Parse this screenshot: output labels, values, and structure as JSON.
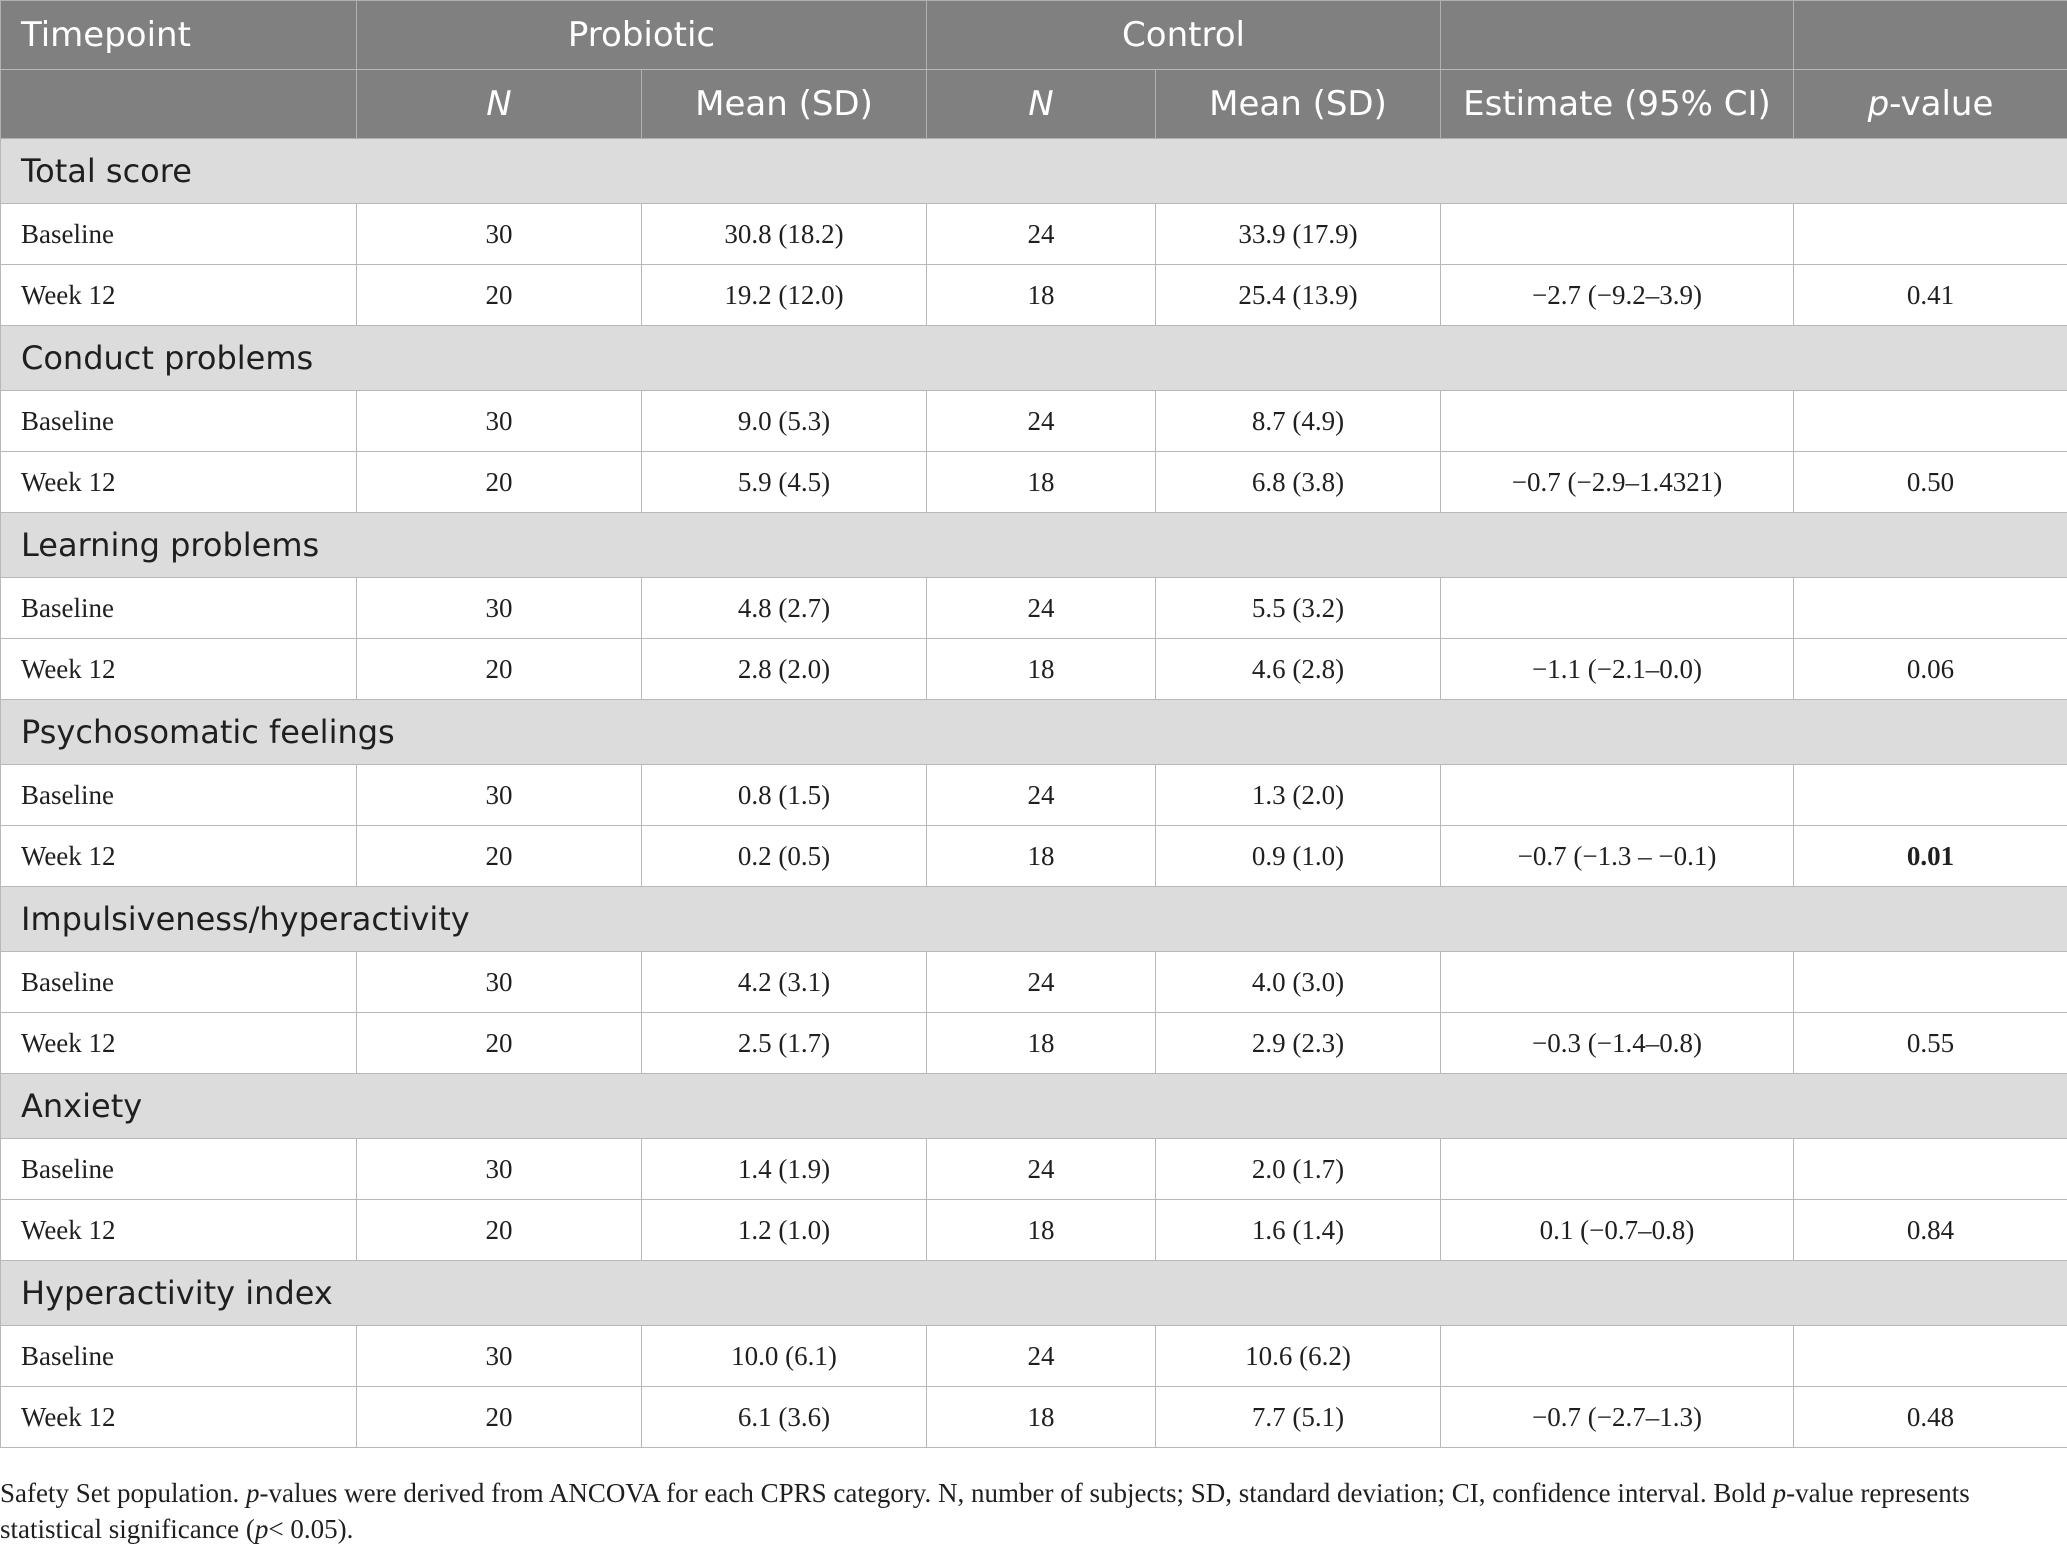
{
  "header": {
    "timepoint": "Timepoint",
    "probiotic": "Probiotic",
    "control": "Control",
    "n": "N",
    "mean_sd": "Mean (SD)",
    "estimate": "Estimate (95% CI)",
    "p_prefix": "p",
    "p_suffix": "-value"
  },
  "sections": [
    {
      "title": "Total score",
      "rows": [
        {
          "timepoint": "Baseline",
          "p_n": "30",
          "p_mean": "30.8 (18.2)",
          "c_n": "24",
          "c_mean": "33.9 (17.9)",
          "estimate": "",
          "p_value": ""
        },
        {
          "timepoint": "Week 12",
          "p_n": "20",
          "p_mean": "19.2 (12.0)",
          "c_n": "18",
          "c_mean": "25.4 (13.9)",
          "estimate": "−2.7 (−9.2–3.9)",
          "p_value": "0.41"
        }
      ]
    },
    {
      "title": "Conduct problems",
      "rows": [
        {
          "timepoint": "Baseline",
          "p_n": "30",
          "p_mean": "9.0 (5.3)",
          "c_n": "24",
          "c_mean": "8.7 (4.9)",
          "estimate": "",
          "p_value": ""
        },
        {
          "timepoint": "Week 12",
          "p_n": "20",
          "p_mean": "5.9 (4.5)",
          "c_n": "18",
          "c_mean": "6.8 (3.8)",
          "estimate": "−0.7 (−2.9–1.4321)",
          "p_value": "0.50"
        }
      ]
    },
    {
      "title": "Learning problems",
      "rows": [
        {
          "timepoint": "Baseline",
          "p_n": "30",
          "p_mean": "4.8 (2.7)",
          "c_n": "24",
          "c_mean": "5.5 (3.2)",
          "estimate": "",
          "p_value": ""
        },
        {
          "timepoint": "Week 12",
          "p_n": "20",
          "p_mean": "2.8 (2.0)",
          "c_n": "18",
          "c_mean": "4.6 (2.8)",
          "estimate": "−1.1 (−2.1–0.0)",
          "p_value": "0.06"
        }
      ]
    },
    {
      "title": "Psychosomatic feelings",
      "rows": [
        {
          "timepoint": "Baseline",
          "p_n": "30",
          "p_mean": "0.8 (1.5)",
          "c_n": "24",
          "c_mean": "1.3 (2.0)",
          "estimate": "",
          "p_value": ""
        },
        {
          "timepoint": "Week 12",
          "p_n": "20",
          "p_mean": "0.2 (0.5)",
          "c_n": "18",
          "c_mean": "0.9 (1.0)",
          "estimate": "−0.7 (−1.3 – −0.1)",
          "p_value": "0.01",
          "p_bold": true
        }
      ]
    },
    {
      "title": "Impulsiveness/hyperactivity",
      "rows": [
        {
          "timepoint": "Baseline",
          "p_n": "30",
          "p_mean": "4.2 (3.1)",
          "c_n": "24",
          "c_mean": "4.0 (3.0)",
          "estimate": "",
          "p_value": ""
        },
        {
          "timepoint": "Week 12",
          "p_n": "20",
          "p_mean": "2.5 (1.7)",
          "c_n": "18",
          "c_mean": "2.9 (2.3)",
          "estimate": "−0.3 (−1.4–0.8)",
          "p_value": "0.55"
        }
      ]
    },
    {
      "title": "Anxiety",
      "rows": [
        {
          "timepoint": "Baseline",
          "p_n": "30",
          "p_mean": "1.4 (1.9)",
          "c_n": "24",
          "c_mean": "2.0 (1.7)",
          "estimate": "",
          "p_value": ""
        },
        {
          "timepoint": "Week 12",
          "p_n": "20",
          "p_mean": "1.2 (1.0)",
          "c_n": "18",
          "c_mean": "1.6 (1.4)",
          "estimate": "0.1 (−0.7–0.8)",
          "p_value": "0.84"
        }
      ]
    },
    {
      "title": "Hyperactivity index",
      "rows": [
        {
          "timepoint": "Baseline",
          "p_n": "30",
          "p_mean": "10.0 (6.1)",
          "c_n": "24",
          "c_mean": "10.6 (6.2)",
          "estimate": "",
          "p_value": ""
        },
        {
          "timepoint": "Week 12",
          "p_n": "20",
          "p_mean": "6.1 (3.6)",
          "c_n": "18",
          "c_mean": "7.7 (5.1)",
          "estimate": "−0.7 (−2.7–1.3)",
          "p_value": "0.48"
        }
      ]
    }
  ],
  "footnote": {
    "part1": "Safety Set population. ",
    "p1": "p",
    "part2": "-values were derived from ANCOVA for each CPRS category. N, number of subjects; SD, standard deviation; CI, confidence interval. Bold ",
    "p2": "p",
    "part3": "-value represents statistical significance (",
    "p3": "p",
    "part4": "< 0.05)."
  }
}
